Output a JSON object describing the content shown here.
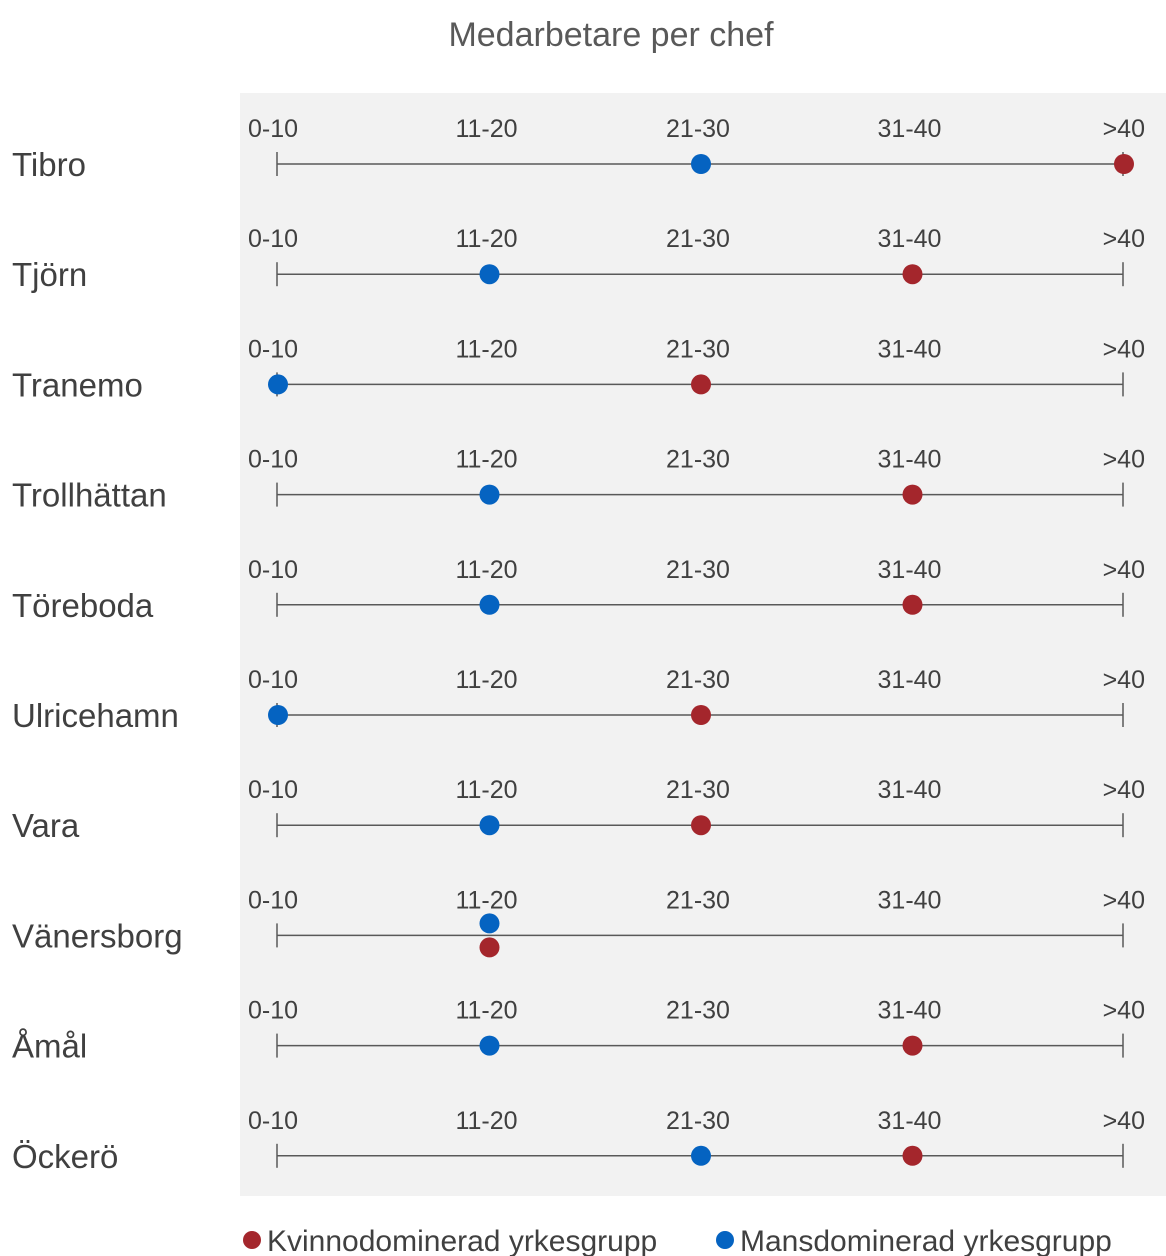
{
  "chart_data": {
    "type": "scatter",
    "title": "Medarbetare per chef",
    "categories": [
      "0-10",
      "11-20",
      "21-30",
      "31-40",
      ">40"
    ],
    "rows": [
      "Tibro",
      "Tjörn",
      "Tranemo",
      "Trollhättan",
      "Töreboda",
      "Ulricehamn",
      "Vara",
      "Vänersborg",
      "Åmål",
      "Öckerö"
    ],
    "series": [
      {
        "name": "Kvinnodominerad yrkesgrupp",
        "color": "#a4262c",
        "values": [
          ">40",
          "31-40",
          "21-30",
          "31-40",
          "31-40",
          "21-30",
          "21-30",
          "11-20",
          "31-40",
          "31-40"
        ]
      },
      {
        "name": "Mansdominerad yrkesgrupp",
        "color": "#0563c1",
        "values": [
          "21-30",
          "11-20",
          "0-10",
          "11-20",
          "11-20",
          "0-10",
          "11-20",
          "11-20",
          "11-20",
          "21-30"
        ]
      }
    ],
    "legend": "bottom",
    "grid": false
  },
  "colors": {
    "panel_background": "#f2f2f2",
    "axis_line": "#595959"
  }
}
